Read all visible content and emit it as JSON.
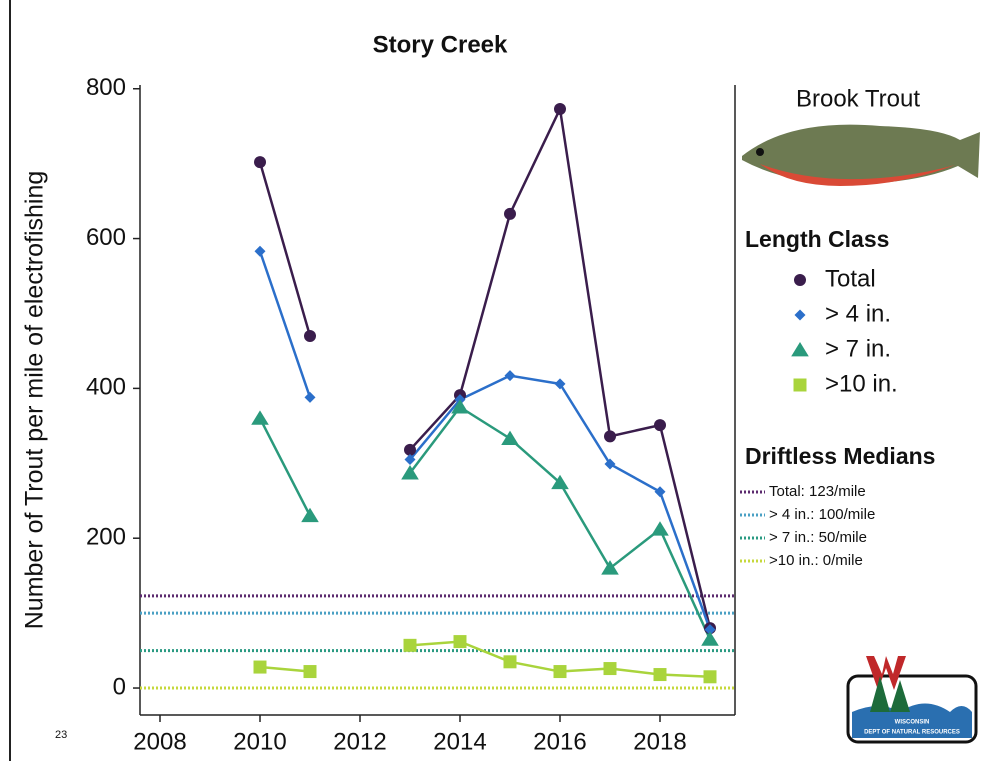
{
  "chart_data": {
    "type": "line",
    "title": "Story Creek",
    "y_label": "Number of Trout per mile of electrofishing",
    "x": [
      2010,
      2011,
      2012,
      2013,
      2014,
      2015,
      2016,
      2017,
      2018,
      2019
    ],
    "xlim": [
      2007.6,
      2019.5
    ],
    "ylim": [
      -36,
      805
    ],
    "xticks": [
      2008,
      2010,
      2012,
      2014,
      2016,
      2018
    ],
    "yticks": [
      0,
      200,
      400,
      600,
      800
    ],
    "legend_title": "Length Class",
    "series": [
      {
        "name": "Total",
        "color": "#3a1d4c",
        "marker": "circle",
        "values": [
          702,
          470,
          null,
          318,
          391,
          633,
          773,
          336,
          351,
          80
        ]
      },
      {
        "name": "> 4 in.",
        "color": "#2b6fca",
        "marker": "diamond",
        "values": [
          583,
          388,
          null,
          305,
          385,
          417,
          406,
          299,
          262,
          78
        ]
      },
      {
        "name": "> 7 in.",
        "color": "#2a9a7c",
        "marker": "triangle",
        "values": [
          360,
          230,
          null,
          287,
          375,
          333,
          274,
          160,
          212,
          65
        ]
      },
      {
        "name": ">10 in.",
        "color": "#a9d43c",
        "marker": "square",
        "values": [
          28,
          22,
          null,
          57,
          62,
          35,
          22,
          26,
          18,
          15
        ]
      }
    ],
    "medians_title": "Driftless Medians",
    "medians": [
      {
        "name": "Total: 123/mile",
        "value": 123,
        "color": "#5b2a6e"
      },
      {
        "name": "> 4 in.: 100/mile",
        "value": 100,
        "color": "#4aa0c4"
      },
      {
        "name": "> 7 in.: 50/mile",
        "value": 50,
        "color": "#2a9a82"
      },
      {
        "name": ">10 in.: 0/mile",
        "value": 0,
        "color": "#c6d83c"
      }
    ]
  },
  "page_number": "23",
  "species": "Brook Trout",
  "logo": {
    "line1": "WISCONSIN",
    "line2": "DEPT OF NATURAL RESOURCES"
  }
}
